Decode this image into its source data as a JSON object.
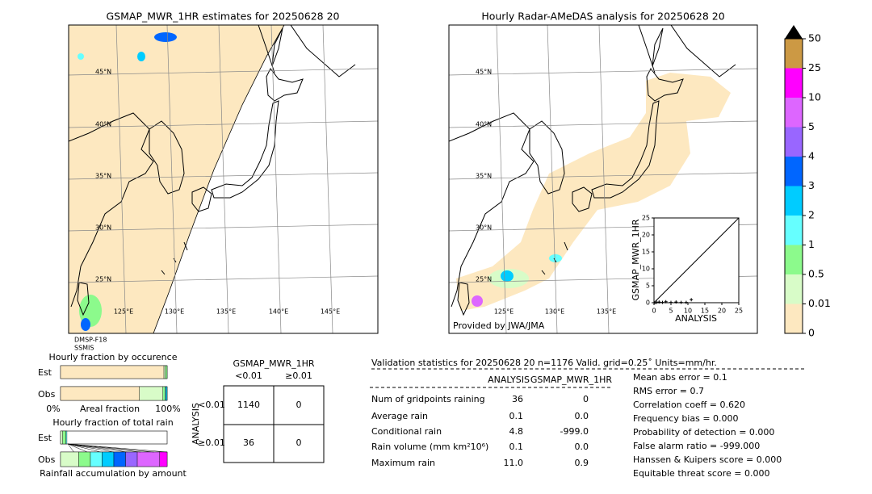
{
  "map_left": {
    "title": "GSMAP_MWR_1HR estimates for 20250628 20",
    "lat_labels": [
      "45°N",
      "40°N",
      "35°N",
      "30°N",
      "25°N"
    ],
    "lon_labels": [
      "125°E",
      "130°E",
      "135°E",
      "140°E",
      "145°E"
    ],
    "satellites": [
      "DMSP-F18",
      "SSMIS"
    ]
  },
  "map_right": {
    "title": "Hourly Radar-AMeDAS analysis for 20250628 20",
    "lat_labels": [
      "45°N",
      "40°N",
      "35°N",
      "30°N",
      "25°N"
    ],
    "lon_labels": [
      "125°E",
      "130°E",
      "135°E"
    ],
    "credit": "Provided by JWA/JMA"
  },
  "colorbar": {
    "levels": [
      "0",
      "0.01",
      "0.5",
      "1",
      "2",
      "3",
      "4",
      "5",
      "10",
      "25",
      "50"
    ],
    "colors": [
      "#fde8c0",
      "#d8fcc8",
      "#8cfa8c",
      "#66ffff",
      "#00ccff",
      "#0066ff",
      "#9966ff",
      "#dd66ff",
      "#ff00ff",
      "#cc9944"
    ],
    "extend_color": "#000000"
  },
  "scatter": {
    "type": "scatter",
    "xlabel": "ANALYSIS",
    "ylabel": "GSMAP_MWR_1HR",
    "xlim": [
      0,
      25
    ],
    "ylim": [
      0,
      25
    ],
    "xticks": [
      0,
      5,
      10,
      15,
      20,
      25
    ],
    "yticks": [
      0,
      5,
      10,
      15,
      20,
      25
    ],
    "x": [
      0.3,
      0.8,
      1.5,
      2.5,
      3.5,
      5,
      6.5,
      8,
      9.5,
      11
    ],
    "y": [
      0,
      0.1,
      0.2,
      0.1,
      0.3,
      0.1,
      0.2,
      0.1,
      0.1,
      0.9
    ],
    "color": "#000000"
  },
  "occurrence": {
    "title": "Hourly fraction by occurence",
    "rows": [
      "Est",
      "Obs"
    ],
    "xlabel": "Areal fraction",
    "left_label": "0%",
    "right_label": "100%",
    "est": [
      97,
      1.5,
      1.5
    ],
    "obs": [
      74,
      22,
      2,
      1,
      1
    ]
  },
  "total_rain": {
    "title": "Hourly fraction of total rain",
    "rows": [
      "Est",
      "Obs"
    ],
    "xlabel": "Rainfall accumulation by amount",
    "est": [
      0,
      2,
      3,
      1
    ],
    "obs": [
      0,
      17,
      11,
      11,
      11,
      11,
      11,
      21,
      7
    ]
  },
  "contingency": {
    "title": "GSMAP_MWR_1HR",
    "columns": [
      "<0.01",
      "≥0.01"
    ],
    "row_title": "ANALYSIS",
    "rows": [
      "<0.01",
      "≥0.01"
    ],
    "cells": [
      [
        "1140",
        "0"
      ],
      [
        "36",
        "0"
      ]
    ]
  },
  "validation": {
    "title": "Validation statistics for 20250628 20  n=1176 Valid. grid=0.25˚ Units=mm/hr.",
    "columns": [
      "ANALYSIS",
      "GSMAP_MWR_1HR"
    ],
    "rows": [
      [
        "Num of gridpoints raining",
        "36",
        "0"
      ],
      [
        "Average rain",
        "0.1",
        "0.0"
      ],
      [
        "Conditional rain",
        "4.8",
        "-999.0"
      ],
      [
        "Rain volume (mm km²10⁶)",
        "0.1",
        "0.0"
      ],
      [
        "Maximum rain",
        "11.0",
        "0.9"
      ]
    ],
    "scores": [
      "Mean abs error =    0.1",
      "RMS error =    0.7",
      "Correlation coeff =  0.620",
      "Frequency bias =  0.000",
      "Probability of detection =  0.000",
      "False alarm ratio = -999.000",
      "Hanssen & Kuipers score =  0.000",
      "Equitable threat score =  0.000"
    ]
  }
}
